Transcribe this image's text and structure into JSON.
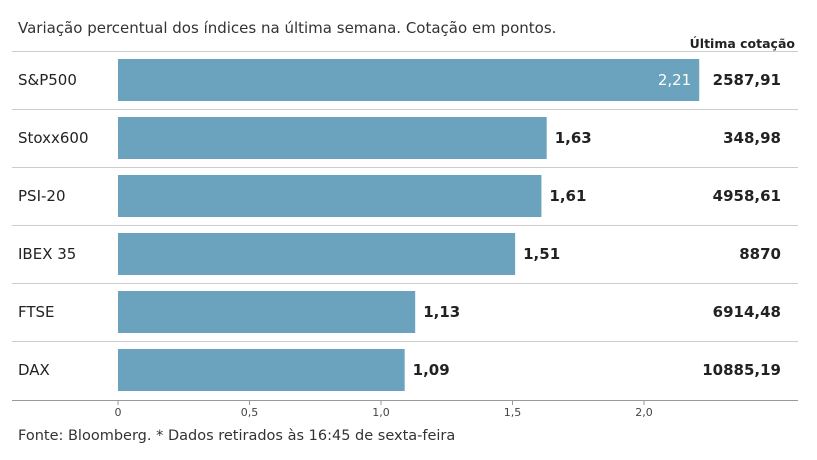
{
  "subtitle": "Variação percentual dos índices na última semana. Cotação em pontos.",
  "value_column_header": "Última cotação",
  "source": "Fonte: Bloomberg.  * Dados retirados às 16:45 de sexta-feira",
  "colors": {
    "bar": "#6ba3be",
    "grid": "#cccccc",
    "axis": "#999999",
    "label_inside": "#ffffff"
  },
  "chart_data": {
    "type": "bar",
    "orientation": "horizontal",
    "categories": [
      "S&P500",
      "Stoxx600",
      "PSI-20",
      "IBEX 35",
      "FTSE",
      "DAX"
    ],
    "values": [
      2.21,
      1.63,
      1.61,
      1.51,
      1.13,
      1.09
    ],
    "value_labels": [
      "2,21",
      "1,63",
      "1,61",
      "1,51",
      "1,13",
      "1,09"
    ],
    "last_quote": [
      "2587,91",
      "348,98",
      "4958,61",
      "8870",
      "6914,48",
      "10885,19"
    ],
    "xlim": [
      0,
      2.2
    ],
    "xticks": [
      0,
      0.5,
      1.0,
      1.5,
      2.0
    ],
    "xtick_labels": [
      "0",
      "0,5",
      "1,0",
      "1,5",
      "2,0"
    ],
    "grid": false
  }
}
